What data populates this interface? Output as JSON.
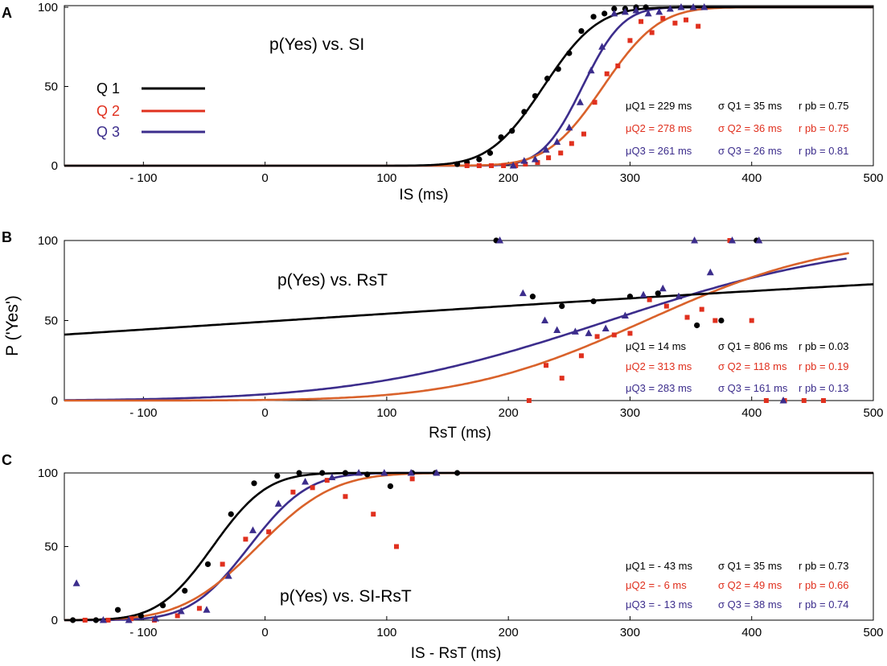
{
  "figure": {
    "y_axis_label": "P ('Yes')",
    "legend": [
      {
        "label": "Q 1",
        "color": "#000000"
      },
      {
        "label": "Q 2",
        "color": "#e0301e"
      },
      {
        "label": "Q 3",
        "color": "#3c2d8c"
      }
    ]
  },
  "colors": {
    "Q1": "#000000",
    "Q2_curve": "#d9622b",
    "Q2_marker": "#e0301e",
    "Q3": "#3c2d8c"
  },
  "chart_data": [
    {
      "panel": "A",
      "type": "scatter",
      "title": "p(Yes) vs. SI",
      "xlabel": "IS (ms)",
      "xlim": [
        -165,
        500
      ],
      "ylim": [
        0,
        100
      ],
      "xticks": [
        -100,
        0,
        100,
        200,
        300,
        400,
        500
      ],
      "xtick_labels": [
        "- 100",
        "0",
        "100",
        "200",
        "300",
        "400",
        "500"
      ],
      "yticks": [
        0,
        50,
        100
      ],
      "ytick_labels": [
        "0",
        "50",
        "100"
      ],
      "series": [
        {
          "name": "Q 1",
          "fit": {
            "mu": 229,
            "sigma": 35,
            "x_range": [
              -165,
              500
            ]
          },
          "points": [
            [
              158,
              1
            ],
            [
              166,
              2
            ],
            [
              176,
              4
            ],
            [
              185,
              8
            ],
            [
              194,
              18
            ],
            [
              203,
              22
            ],
            [
              213,
              34
            ],
            [
              222,
              44
            ],
            [
              232,
              55
            ],
            [
              241,
              61
            ],
            [
              250,
              71
            ],
            [
              260,
              85
            ],
            [
              270,
              94
            ],
            [
              279,
              96
            ],
            [
              287,
              99
            ],
            [
              296,
              99
            ],
            [
              305,
              100
            ],
            [
              313,
              100
            ]
          ]
        },
        {
          "name": "Q 2",
          "fit": {
            "mu": 278,
            "sigma": 36,
            "x_range": [
              -165,
              500
            ]
          },
          "points": [
            [
              166,
              0
            ],
            [
              176,
              0
            ],
            [
              186,
              0
            ],
            [
              196,
              0
            ],
            [
              206,
              0
            ],
            [
              214,
              1
            ],
            [
              224,
              2
            ],
            [
              233,
              5
            ],
            [
              243,
              8
            ],
            [
              252,
              14
            ],
            [
              262,
              20
            ],
            [
              271,
              40
            ],
            [
              281,
              58
            ],
            [
              290,
              63
            ],
            [
              300,
              79
            ],
            [
              309,
              91
            ],
            [
              318,
              84
            ],
            [
              327,
              93
            ],
            [
              337,
              90
            ],
            [
              346,
              92
            ],
            [
              356,
              88
            ]
          ]
        },
        {
          "name": "Q 3",
          "fit": {
            "mu": 261,
            "sigma": 26,
            "x_range": [
              -165,
              500
            ]
          },
          "points": [
            [
              204,
              0
            ],
            [
              213,
              3
            ],
            [
              222,
              4
            ],
            [
              231,
              10
            ],
            [
              240,
              15
            ],
            [
              250,
              24
            ],
            [
              259,
              40
            ],
            [
              268,
              60
            ],
            [
              277,
              75
            ],
            [
              287,
              96
            ],
            [
              296,
              97
            ],
            [
              305,
              98
            ],
            [
              315,
              96
            ],
            [
              324,
              97
            ],
            [
              333,
              99
            ],
            [
              342,
              100
            ],
            [
              352,
              100
            ],
            [
              361,
              100
            ]
          ]
        }
      ],
      "stats": [
        {
          "mu": "μQ1 = 229 ms",
          "sigma": "σ Q1 = 35 ms",
          "r": "r pb = 0.75"
        },
        {
          "mu": "μQ2 = 278 ms",
          "sigma": "σ Q2 = 36 ms",
          "r": "r pb = 0.75"
        },
        {
          "mu": "μQ3 = 261 ms",
          "sigma": "σ Q3 = 26 ms",
          "r": "r pb = 0.81"
        }
      ]
    },
    {
      "panel": "B",
      "type": "scatter",
      "title": "p(Yes) vs. RsT",
      "xlabel": "RsT (ms)",
      "xlim": [
        -165,
        500
      ],
      "ylim": [
        0,
        100
      ],
      "xticks": [
        -100,
        0,
        100,
        200,
        300,
        400,
        500
      ],
      "xtick_labels": [
        "- 100",
        "0",
        "100",
        "200",
        "300",
        "400",
        "500"
      ],
      "yticks": [
        0,
        50,
        100
      ],
      "ytick_labels": [
        "0",
        "50",
        "100"
      ],
      "series": [
        {
          "name": "Q 1",
          "fit": {
            "mu": 14,
            "sigma": 806,
            "x_range": [
              -165,
              500
            ]
          },
          "points": [
            [
              190,
              100
            ],
            [
              220,
              65
            ],
            [
              244,
              59
            ],
            [
              270,
              62
            ],
            [
              300,
              65
            ],
            [
              323,
              67
            ],
            [
              355,
              47
            ],
            [
              375,
              50
            ],
            [
              404,
              100
            ]
          ]
        },
        {
          "name": "Q 2",
          "fit": {
            "mu": 313,
            "sigma": 118,
            "x_range": [
              -165,
              480
            ]
          },
          "points": [
            [
              217,
              0
            ],
            [
              231,
              22
            ],
            [
              244,
              14
            ],
            [
              260,
              28
            ],
            [
              273,
              40
            ],
            [
              287,
              41
            ],
            [
              300,
              42
            ],
            [
              316,
              63
            ],
            [
              330,
              59
            ],
            [
              347,
              52
            ],
            [
              359,
              57
            ],
            [
              370,
              50
            ],
            [
              382,
              100
            ],
            [
              400,
              50
            ],
            [
              412,
              0
            ],
            [
              427,
              0
            ],
            [
              443,
              0
            ],
            [
              459,
              0
            ]
          ]
        },
        {
          "name": "Q 3",
          "fit": {
            "mu": 283,
            "sigma": 161,
            "x_range": [
              -165,
              478
            ]
          },
          "points": [
            [
              193,
              100
            ],
            [
              212,
              67
            ],
            [
              230,
              50
            ],
            [
              240,
              44
            ],
            [
              255,
              43
            ],
            [
              266,
              42
            ],
            [
              280,
              45
            ],
            [
              296,
              53
            ],
            [
              311,
              66
            ],
            [
              327,
              70
            ],
            [
              340,
              65
            ],
            [
              353,
              100
            ],
            [
              366,
              80
            ],
            [
              384,
              100
            ],
            [
              406,
              100
            ],
            [
              426,
              0
            ]
          ]
        }
      ],
      "stats": [
        {
          "mu": "μQ1 =  14 ms",
          "sigma": "σ Q1 = 806 ms",
          "r": "r pb = 0.03"
        },
        {
          "mu": "μQ2 = 313 ms",
          "sigma": "σ Q2 = 118 ms",
          "r": "r pb = 0.19"
        },
        {
          "mu": "μQ3 = 283 ms",
          "sigma": "σ Q3 = 161 ms",
          "r": "r pb = 0.13"
        }
      ]
    },
    {
      "panel": "C",
      "type": "scatter",
      "title": "p(Yes) vs. SI-RsT",
      "xlabel": "IS - RsT (ms)",
      "xlim": [
        -165,
        500
      ],
      "ylim": [
        0,
        100
      ],
      "xticks": [
        -100,
        0,
        100,
        200,
        300,
        400,
        500
      ],
      "xtick_labels": [
        "- 100",
        "0",
        "100",
        "200",
        "300",
        "400",
        "500"
      ],
      "yticks": [
        0,
        50,
        100
      ],
      "ytick_labels": [
        "0",
        "50",
        "100"
      ],
      "series": [
        {
          "name": "Q 1",
          "fit": {
            "mu": -43,
            "sigma": 35,
            "x_range": [
              -165,
              500
            ]
          },
          "points": [
            [
              -158,
              0
            ],
            [
              -139,
              0
            ],
            [
              -121,
              7
            ],
            [
              -102,
              3
            ],
            [
              -84,
              10
            ],
            [
              -66,
              20
            ],
            [
              -47,
              38
            ],
            [
              -28,
              72
            ],
            [
              -9,
              93
            ],
            [
              10,
              98
            ],
            [
              28,
              100
            ],
            [
              47,
              100
            ],
            [
              66,
              100
            ],
            [
              84,
              99
            ],
            [
              103,
              91
            ],
            [
              121,
              100
            ],
            [
              140,
              100
            ],
            [
              158,
              100
            ]
          ]
        },
        {
          "name": "Q 2",
          "fit": {
            "mu": -6,
            "sigma": 49,
            "x_range": [
              -165,
              500
            ]
          },
          "points": [
            [
              -148,
              0
            ],
            [
              -129,
              0
            ],
            [
              -110,
              1
            ],
            [
              -91,
              0
            ],
            [
              -72,
              3
            ],
            [
              -54,
              8
            ],
            [
              -35,
              38
            ],
            [
              -16,
              55
            ],
            [
              3,
              60
            ],
            [
              23,
              87
            ],
            [
              39,
              90
            ],
            [
              51,
              95
            ],
            [
              66,
              84
            ],
            [
              89,
              72
            ],
            [
              108,
              50
            ],
            [
              121,
              96
            ]
          ]
        },
        {
          "name": "Q 3",
          "fit": {
            "mu": -13,
            "sigma": 38,
            "x_range": [
              -165,
              500
            ]
          },
          "points": [
            [
              -155,
              25
            ],
            [
              -133,
              0
            ],
            [
              -112,
              0
            ],
            [
              -90,
              1
            ],
            [
              -69,
              6
            ],
            [
              -48,
              7
            ],
            [
              -30,
              30
            ],
            [
              -10,
              61
            ],
            [
              11,
              79
            ],
            [
              33,
              94
            ],
            [
              55,
              97
            ],
            [
              77,
              100
            ],
            [
              98,
              100
            ],
            [
              120,
              100
            ],
            [
              141,
              100
            ]
          ]
        }
      ],
      "stats": [
        {
          "mu": "μQ1 = - 43 ms",
          "sigma": "σ Q1 = 35 ms",
          "r": "r pb = 0.73"
        },
        {
          "mu": "μQ2 =   - 6 ms",
          "sigma": "σ Q2 = 49 ms",
          "r": "r pb = 0.66"
        },
        {
          "mu": "μQ3 = - 13 ms",
          "sigma": "σ Q3 = 38 ms",
          "r": "r pb = 0.74"
        }
      ]
    }
  ]
}
